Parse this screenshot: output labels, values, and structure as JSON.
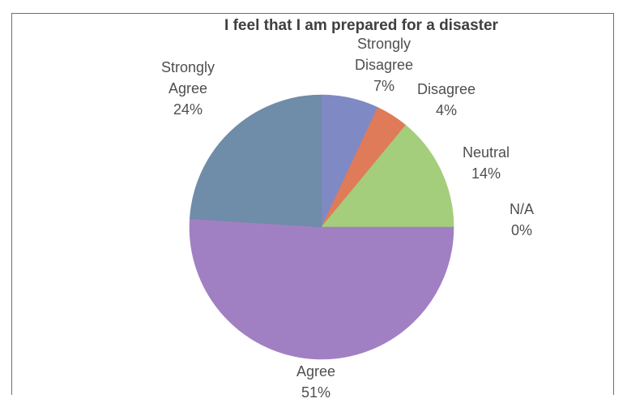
{
  "chart_data": {
    "type": "pie",
    "title": "I feel that I am prepared for a disaster",
    "slices": [
      {
        "label": "Strongly Disagree",
        "label_lines": [
          "Strongly",
          "Disagree"
        ],
        "value": 7,
        "value_text": "7%",
        "color": "#7f89c4"
      },
      {
        "label": "Disagree",
        "label_lines": [
          "Disagree"
        ],
        "value": 4,
        "value_text": "4%",
        "color": "#df7b58"
      },
      {
        "label": "Neutral",
        "label_lines": [
          "Neutral"
        ],
        "value": 14,
        "value_text": "14%",
        "color": "#a4ce7c"
      },
      {
        "label": "N/A",
        "label_lines": [
          "N/A"
        ],
        "value": 0,
        "value_text": "0%",
        "color": "#9f9fc4"
      },
      {
        "label": "Agree",
        "label_lines": [
          "Agree"
        ],
        "value": 51,
        "value_text": "51%",
        "color": "#a080c2"
      },
      {
        "label": "Strongly Agree",
        "label_lines": [
          "Strongly",
          "Agree"
        ],
        "value": 24,
        "value_text": "24%",
        "color": "#6f8ca8"
      }
    ],
    "start_angle_deg": 0,
    "direction": "clockwise",
    "legend": "none",
    "labels_outside": true
  }
}
